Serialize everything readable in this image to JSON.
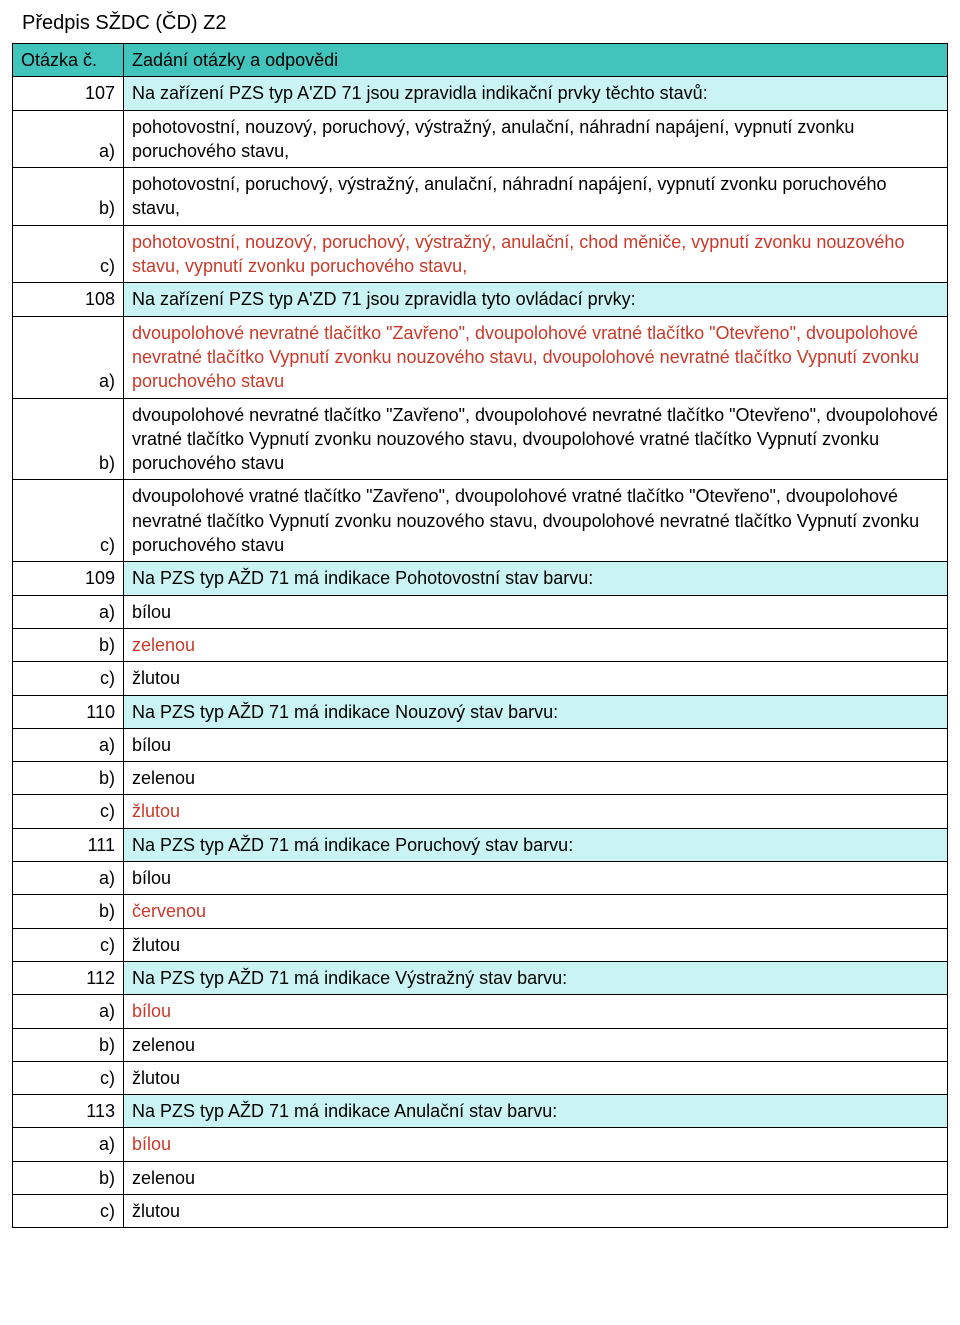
{
  "doc_title": "Předpis SŽDC (ČD) Z2",
  "header": {
    "col1": "Otázka č.",
    "col2": "Zadání otázky a odpovědi"
  },
  "colors": {
    "header_bg": "#40c4bb",
    "question_bg": "#c9f4f3",
    "correct_text": "#c93a2a",
    "border": "#000000",
    "text": "#000000",
    "background": "#ffffff"
  },
  "rows": [
    {
      "num": "107",
      "type": "question",
      "text": "Na zařízení PZS typ A'ZD 71 jsou zpravidla indikační prvky těchto stavů:"
    },
    {
      "num": "a)",
      "type": "answer",
      "correct": false,
      "text": "pohotovostní, nouzový, poruchový, výstražný, anulační, náhradní napájení, vypnutí zvonku poruchového stavu,"
    },
    {
      "num": "b)",
      "type": "answer",
      "correct": false,
      "text": "pohotovostní, poruchový, výstražný, anulační, náhradní napájení, vypnutí zvonku poruchového stavu,"
    },
    {
      "num": "c)",
      "type": "answer",
      "correct": true,
      "text": "pohotovostní, nouzový, poruchový, výstražný, anulační, chod měniče, vypnutí zvonku nouzového stavu, vypnutí zvonku poruchového stavu,"
    },
    {
      "num": "108",
      "type": "question",
      "text": "Na zařízení PZS typ A'ZD 71 jsou zpravidla tyto ovládací prvky:"
    },
    {
      "num": "a)",
      "type": "answer",
      "correct": true,
      "text": "dvoupolohové nevratné tlačítko \"Zavřeno\", dvoupolohové vratné tlačítko \"Otevřeno\", dvoupolohové nevratné tlačítko Vypnutí zvonku nouzového stavu, dvoupolohové nevratné tlačítko Vypnutí zvonku poruchového stavu"
    },
    {
      "num": "b)",
      "type": "answer",
      "correct": false,
      "text": "dvoupolohové nevratné tlačítko \"Zavřeno\", dvoupolohové nevratné tlačítko \"Otevřeno\", dvoupolohové vratné tlačítko Vypnutí zvonku nouzového stavu, dvoupolohové vratné tlačítko Vypnutí zvonku poruchového stavu"
    },
    {
      "num": "c)",
      "type": "answer",
      "correct": false,
      "text": "dvoupolohové vratné tlačítko \"Zavřeno\", dvoupolohové vratné tlačítko \"Otevřeno\", dvoupolohové nevratné tlačítko Vypnutí zvonku nouzového stavu, dvoupolohové nevratné tlačítko Vypnutí zvonku poruchového stavu"
    },
    {
      "num": "109",
      "type": "question",
      "text": "Na PZS typ AŽD 71 má indikace Pohotovostní stav barvu:"
    },
    {
      "num": "a)",
      "type": "answer",
      "correct": false,
      "text": "bílou"
    },
    {
      "num": "b)",
      "type": "answer",
      "correct": true,
      "text": "zelenou"
    },
    {
      "num": "c)",
      "type": "answer",
      "correct": false,
      "text": "žlutou"
    },
    {
      "num": "110",
      "type": "question",
      "text": "Na PZS typ AŽD 71 má indikace Nouzový stav barvu:"
    },
    {
      "num": "a)",
      "type": "answer",
      "correct": false,
      "text": "bílou"
    },
    {
      "num": "b)",
      "type": "answer",
      "correct": false,
      "text": "zelenou"
    },
    {
      "num": "c)",
      "type": "answer",
      "correct": true,
      "text": "žlutou"
    },
    {
      "num": "111",
      "type": "question",
      "text": "Na PZS typ AŽD 71 má indikace Poruchový stav barvu:"
    },
    {
      "num": "a)",
      "type": "answer",
      "correct": false,
      "text": "bílou"
    },
    {
      "num": "b)",
      "type": "answer",
      "correct": true,
      "text": "červenou"
    },
    {
      "num": "c)",
      "type": "answer",
      "correct": false,
      "text": "žlutou"
    },
    {
      "num": "112",
      "type": "question",
      "text": "Na PZS typ AŽD 71 má indikace Výstražný stav barvu:"
    },
    {
      "num": "a)",
      "type": "answer",
      "correct": true,
      "text": "bílou"
    },
    {
      "num": "b)",
      "type": "answer",
      "correct": false,
      "text": "zelenou"
    },
    {
      "num": "c)",
      "type": "answer",
      "correct": false,
      "text": "žlutou"
    },
    {
      "num": "113",
      "type": "question",
      "text": "Na PZS typ AŽD 71 má indikace Anulační stav barvu:"
    },
    {
      "num": "a)",
      "type": "answer",
      "correct": true,
      "text": "bílou"
    },
    {
      "num": "b)",
      "type": "answer",
      "correct": false,
      "text": "zelenou"
    },
    {
      "num": "c)",
      "type": "answer",
      "correct": false,
      "text": "žlutou"
    }
  ]
}
